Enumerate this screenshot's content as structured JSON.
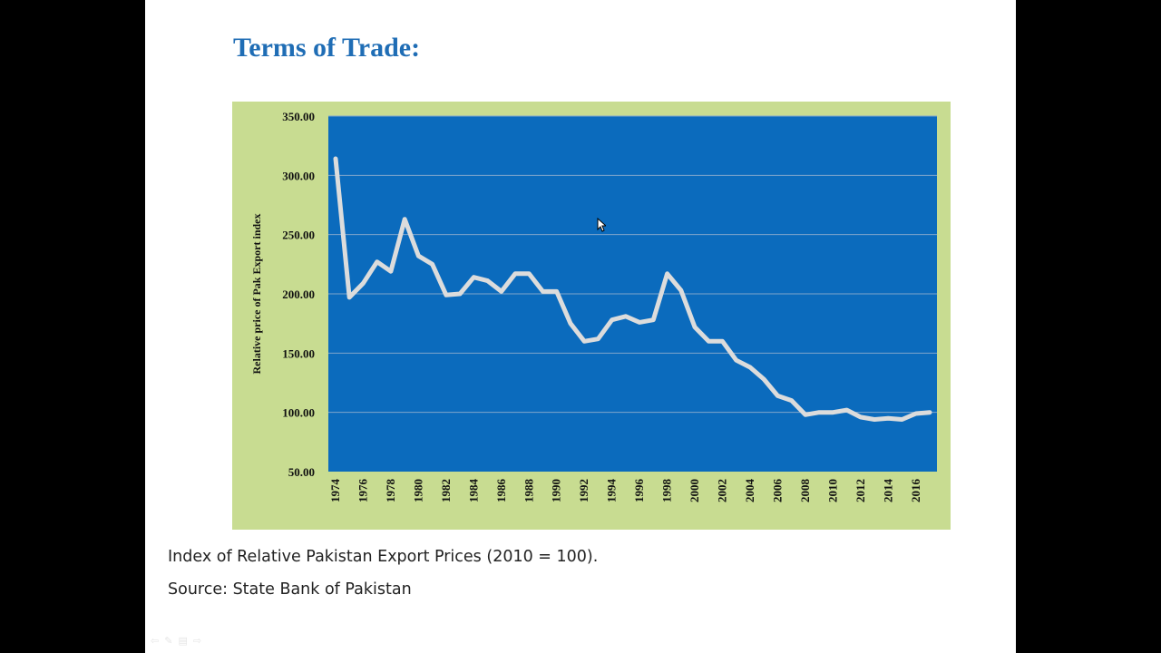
{
  "slide": {
    "title": "Terms of Trade:",
    "caption": "Index of Relative Pakistan Export Prices (2010 = 100).",
    "source": "Source: State Bank of Pakistan"
  },
  "colors": {
    "chart_outer_bg": "#c8dc91",
    "plot_bg": "#0b6bbd",
    "line": "#dcdcdc",
    "grid": "#7fa6cc",
    "title": "#1f6db5",
    "text": "#222222"
  },
  "icons": [
    "back-arrow-icon",
    "pen-icon",
    "menu-icon",
    "forward-arrow-icon"
  ],
  "chart_data": {
    "type": "line",
    "title": "",
    "xlabel": "",
    "ylabel": "Relative price of Pak Export index",
    "ylim": [
      50,
      350
    ],
    "yticks": [
      50,
      100,
      150,
      200,
      250,
      300,
      350
    ],
    "ytick_labels": [
      "50.00",
      "100.00",
      "150.00",
      "200.00",
      "250.00",
      "300.00",
      "350.00"
    ],
    "xtick_labels": [
      "1974",
      "1976",
      "1978",
      "1980",
      "1982",
      "1984",
      "1986",
      "1988",
      "1990",
      "1992",
      "1994",
      "1996",
      "1998",
      "2000",
      "2002",
      "2004",
      "2006",
      "2008",
      "2010",
      "2012",
      "2014",
      "2016"
    ],
    "grid": true,
    "legend": "none",
    "x": [
      1974,
      1975,
      1976,
      1977,
      1978,
      1979,
      1980,
      1981,
      1982,
      1983,
      1984,
      1985,
      1986,
      1987,
      1988,
      1989,
      1990,
      1991,
      1992,
      1993,
      1994,
      1995,
      1996,
      1997,
      1998,
      1999,
      2000,
      2001,
      2002,
      2003,
      2004,
      2005,
      2006,
      2007,
      2008,
      2009,
      2010,
      2011,
      2012,
      2013,
      2014,
      2015,
      2016,
      2017
    ],
    "values": [
      314,
      197,
      209,
      227,
      219,
      263,
      232,
      225,
      199,
      200,
      214,
      211,
      202,
      217,
      217,
      202,
      202,
      175,
      160,
      162,
      178,
      181,
      176,
      178,
      217,
      203,
      172,
      160,
      160,
      144,
      138,
      128,
      114,
      110,
      98,
      100,
      100,
      102,
      96,
      94,
      95,
      94,
      99,
      100
    ]
  }
}
